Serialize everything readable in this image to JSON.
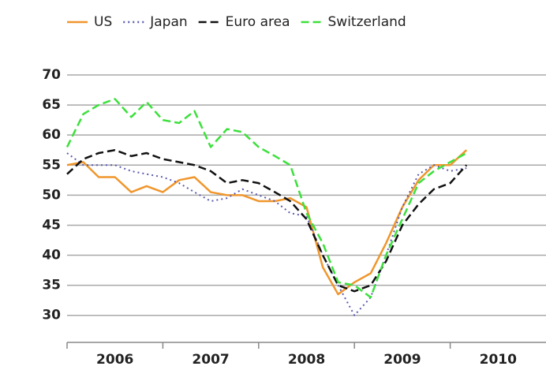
{
  "chart_data": {
    "type": "line",
    "x": [
      2006.0,
      2006.17,
      2006.33,
      2006.5,
      2006.67,
      2006.83,
      2007.0,
      2007.17,
      2007.33,
      2007.5,
      2007.67,
      2007.83,
      2008.0,
      2008.17,
      2008.33,
      2008.5,
      2008.67,
      2008.83,
      2009.0,
      2009.17,
      2009.33,
      2009.5,
      2009.67,
      2009.83,
      2010.0,
      2010.17
    ],
    "series": [
      {
        "name": "US",
        "color": "#f0962c",
        "dash": "solid",
        "values": [
          55,
          55.5,
          53,
          53,
          50.5,
          51.5,
          50.5,
          52.5,
          53,
          50.5,
          50,
          50,
          49,
          49,
          49.5,
          48,
          38,
          33.5,
          35.5,
          37,
          42,
          48,
          52.5,
          55,
          55,
          57.5
        ]
      },
      {
        "name": "Japan",
        "color": "#5b5bb0",
        "dash": "dotted",
        "values": [
          57,
          55,
          55,
          55,
          54,
          53.5,
          53,
          52,
          50.5,
          49,
          49.5,
          51,
          50,
          49,
          47,
          46.5,
          40,
          35,
          30,
          33,
          40,
          48,
          53.5,
          55,
          54,
          54.5
        ]
      },
      {
        "name": "Euro area",
        "color": "#111111",
        "dash": "dashed",
        "values": [
          53.5,
          56,
          57,
          57.5,
          56.5,
          57,
          56,
          55.5,
          55,
          54,
          52,
          52.5,
          52,
          50.5,
          49,
          46,
          40,
          35,
          34,
          35,
          39,
          45,
          48.5,
          51,
          52,
          55
        ]
      },
      {
        "name": "Switzerland",
        "color": "#3be03b",
        "dash": "dashed",
        "values": [
          58,
          63.5,
          65,
          66,
          63,
          65.5,
          62.5,
          62,
          64,
          58,
          61,
          60.5,
          58,
          56.5,
          55,
          47,
          42,
          35.5,
          35,
          33,
          40,
          46,
          52,
          54,
          55.5,
          57
        ]
      }
    ],
    "xlim": [
      2006,
      2011
    ],
    "xticks": [
      2006,
      2007,
      2008,
      2009,
      2010
    ],
    "ylim": [
      25.5,
      70
    ],
    "yticks": [
      30,
      35,
      40,
      45,
      50,
      55,
      60,
      65,
      70
    ],
    "grid": true
  }
}
